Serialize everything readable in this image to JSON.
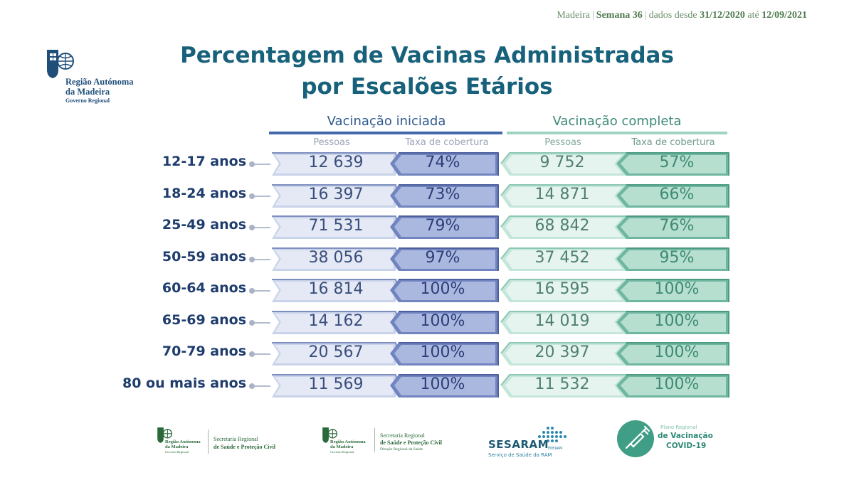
{
  "header": {
    "region": "Madeira",
    "week_label": "Semana 36",
    "data_since_label": "dados desde",
    "start_date": "31/12/2020",
    "until_label": "até",
    "end_date": "12/09/2021"
  },
  "logo": {
    "line1": "Região Autónoma",
    "line2": "da Madeira",
    "line3": "Governo Regional"
  },
  "title": {
    "line1": "Percentagem de Vacinas Administradas",
    "line2": "por Escalões Etários"
  },
  "groups": {
    "initiated": "Vacinação iniciada",
    "complete": "Vacinação completa"
  },
  "columns": {
    "people": "Pessoas",
    "coverage": "Taxa de cobertura"
  },
  "rows": [
    {
      "age": "12-17 anos",
      "initiated_people": "12 639",
      "initiated_coverage": "74%",
      "complete_people": "9 752",
      "complete_coverage": "57%"
    },
    {
      "age": "18-24 anos",
      "initiated_people": "16 397",
      "initiated_coverage": "73%",
      "complete_people": "14 871",
      "complete_coverage": "66%"
    },
    {
      "age": "25-49 anos",
      "initiated_people": "71 531",
      "initiated_coverage": "79%",
      "complete_people": "68 842",
      "complete_coverage": "76%"
    },
    {
      "age": "50-59 anos",
      "initiated_people": "38 056",
      "initiated_coverage": "97%",
      "complete_people": "37 452",
      "complete_coverage": "95%"
    },
    {
      "age": "60-64 anos",
      "initiated_people": "16 814",
      "initiated_coverage": "100%",
      "complete_people": "16 595",
      "complete_coverage": "100%"
    },
    {
      "age": "65-69 anos",
      "initiated_people": "14 162",
      "initiated_coverage": "100%",
      "complete_people": "14 019",
      "complete_coverage": "100%"
    },
    {
      "age": "70-79 anos",
      "initiated_people": "20 567",
      "initiated_coverage": "100%",
      "complete_people": "20 397",
      "complete_coverage": "100%"
    },
    {
      "age": "80 ou mais anos",
      "initiated_people": "11 569",
      "initiated_coverage": "100%",
      "complete_people": "11 532",
      "complete_coverage": "100%"
    }
  ],
  "footer": {
    "logo1": {
      "line1": "Região Autónoma",
      "line2": "da Madeira",
      "line3": "Governo Regional",
      "sec1": "Secretaria Regional",
      "sec2": "de Saúde e Proteção Civil"
    },
    "logo2": {
      "line1": "Região Autónoma",
      "line2": "da Madeira",
      "line3": "Governo Regional",
      "sec1": "Secretaria Regional",
      "sec2": "de Saúde e Proteção Civil",
      "sec3": "Direção Regional da Saúde"
    },
    "sesaram": {
      "name": "SESARAM",
      "suffix": "EPERAM",
      "subtitle": "Serviço de Saúde da RAM"
    },
    "covid": {
      "line1": "Plano Regional",
      "line2": "de Vacinação",
      "line3": "COVID-19"
    }
  },
  "colors": {
    "title": "#17617a",
    "initiated_dark": "#4168a8",
    "initiated_light": "#dfe5f3",
    "complete_dark": "#5fae98",
    "complete_light": "#e4f3ee"
  }
}
